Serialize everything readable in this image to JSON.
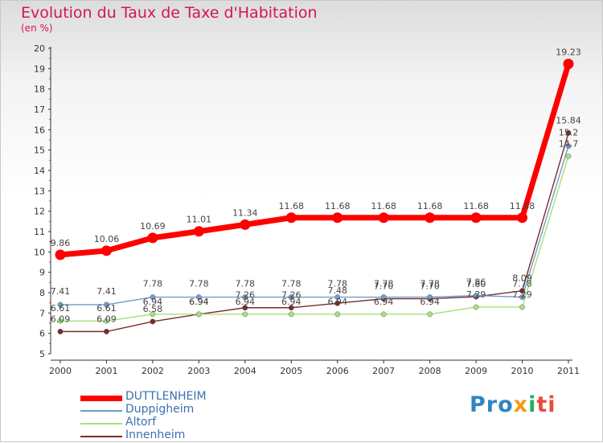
{
  "chart_data": {
    "type": "line",
    "title": "Evolution du Taux de Taxe d'Habitation",
    "subtitle": "(en %)",
    "xlabel": "",
    "ylabel": "",
    "categories": [
      "2000",
      "2001",
      "2002",
      "2003",
      "2004",
      "2005",
      "2006",
      "2007",
      "2008",
      "2009",
      "2010",
      "2011"
    ],
    "ylim": [
      5,
      20
    ],
    "yticks": [
      "5",
      "6",
      "7",
      "8",
      "9",
      "10",
      "11",
      "12",
      "13",
      "14",
      "15",
      "16",
      "17",
      "18",
      "19",
      "20"
    ],
    "series": [
      {
        "name": "DUTTLENHEIM",
        "color": "#ff0000",
        "values": [
          9.86,
          10.06,
          10.69,
          11.01,
          11.34,
          11.68,
          11.68,
          11.68,
          11.68,
          11.68,
          11.68,
          19.23
        ],
        "labels": [
          "9.86",
          "10.06",
          "10.69",
          "11.01",
          "11.34",
          "11.68",
          "11.68",
          "11.68",
          "11.68",
          "11.68",
          "11.68",
          "19.23"
        ]
      },
      {
        "name": "Duppigheim",
        "color": "#6f9ccf",
        "values": [
          7.41,
          7.41,
          7.78,
          7.78,
          7.78,
          7.78,
          7.78,
          7.78,
          7.78,
          7.86,
          7.78,
          15.2
        ],
        "labels": [
          "7.41",
          "7.41",
          "7.78",
          "7.78",
          "7.78",
          "7.78",
          "7.78",
          "7.78",
          "7.78",
          "7.86",
          "7.78",
          "15.2"
        ]
      },
      {
        "name": "Altorf",
        "color": "#a6e07a",
        "values": [
          6.61,
          6.61,
          6.94,
          6.94,
          6.94,
          6.94,
          6.94,
          6.94,
          6.94,
          7.29,
          7.29,
          14.7
        ],
        "labels": [
          "6.61",
          "6.61",
          "6.94",
          "6.94",
          "6.94",
          "6.94",
          "6.94",
          "6.94",
          "6.94",
          "7.29",
          "7.29",
          "14.7"
        ]
      },
      {
        "name": "Innenheim",
        "color": "#7b2b2b",
        "values": [
          6.09,
          6.09,
          6.58,
          6.94,
          7.26,
          7.26,
          7.48,
          7.7,
          7.7,
          7.8,
          8.09,
          15.84
        ],
        "labels": [
          "6.09",
          "6.09",
          "6.58",
          "6.94",
          "7.26",
          "7.26",
          "7.48",
          "7.70",
          "7.70",
          "7.80",
          "8.09",
          "15.84"
        ]
      }
    ],
    "legend": "bottom-left"
  },
  "brand": {
    "p1": "Pro",
    "p2": "x",
    "p3": "i",
    "p4": "ti"
  }
}
